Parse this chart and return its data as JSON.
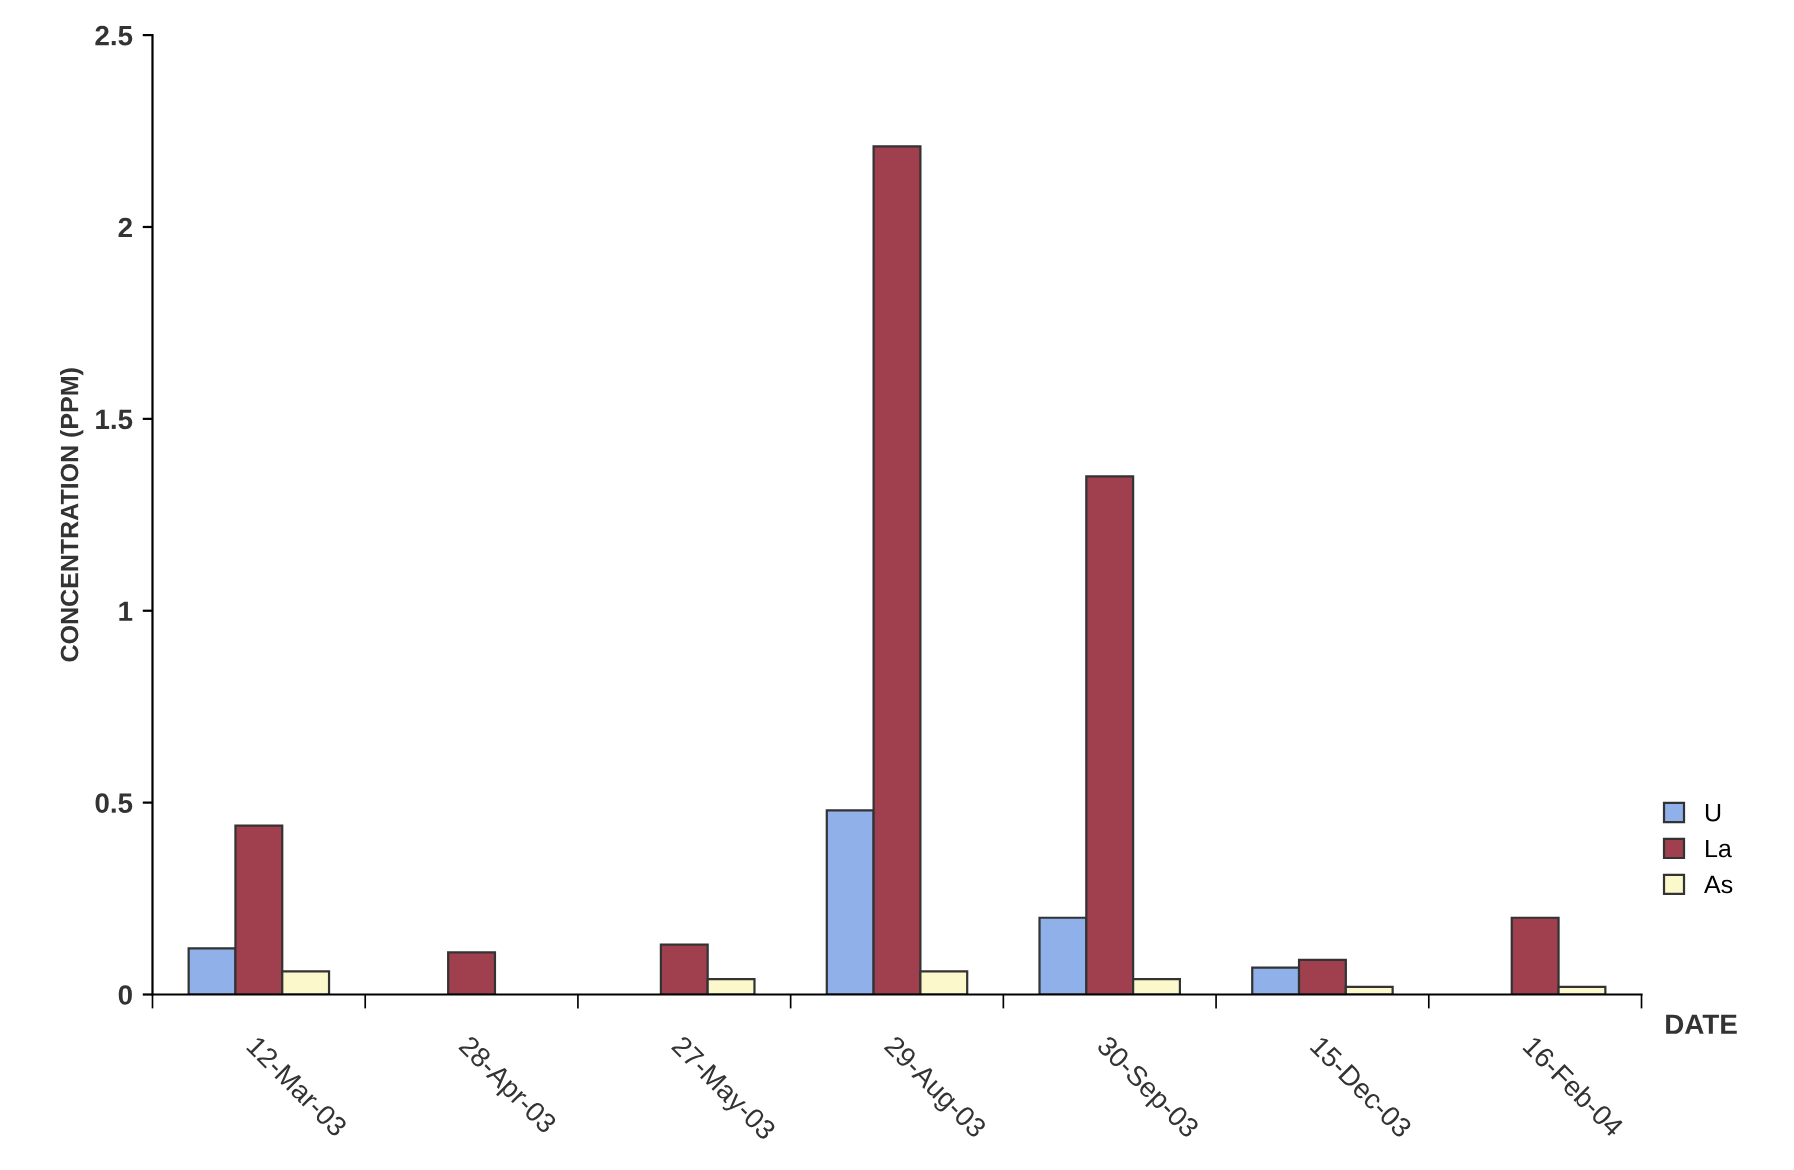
{
  "chart_data": {
    "type": "bar",
    "xlabel": "DATE",
    "ylabel": "CONCENTRATION (PPM)",
    "categories": [
      "12-Mar-03",
      "28-Apr-03",
      "27-May-03",
      "29-Aug-03",
      "30-Sep-03",
      "15-Dec-03",
      "16-Feb-04"
    ],
    "series": [
      {
        "name": "U",
        "color": "#8fb0e8",
        "values": [
          0.12,
          null,
          null,
          0.48,
          0.2,
          0.07,
          null
        ]
      },
      {
        "name": "La",
        "color": "#a0404f",
        "values": [
          0.44,
          0.11,
          0.13,
          2.21,
          1.35,
          0.09,
          0.2
        ]
      },
      {
        "name": "As",
        "color": "#fbf8cc",
        "values": [
          0.06,
          null,
          0.04,
          0.06,
          0.04,
          0.02,
          0.02
        ]
      }
    ],
    "ylim": [
      0,
      2.5
    ],
    "yticks": [
      0,
      0.5,
      1,
      1.5,
      2,
      2.5
    ],
    "grid": false,
    "legend": "right"
  }
}
